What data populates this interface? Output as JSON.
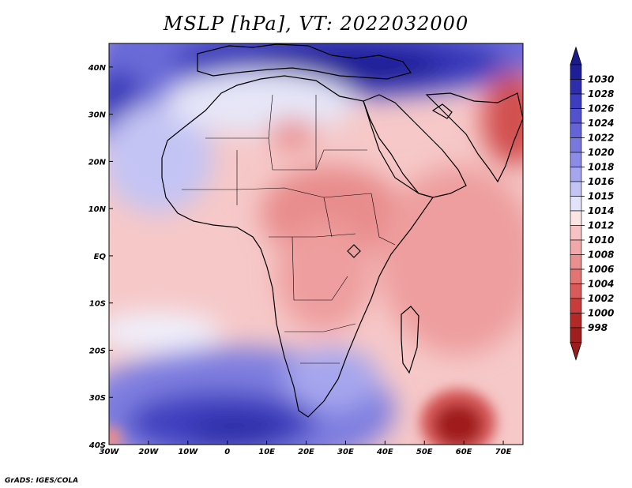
{
  "title": "MSLP [hPa], VT: 2022032000",
  "credit": "GrADS: IGES/COLA",
  "map": {
    "lon_range": [
      -30,
      75
    ],
    "lat_range": [
      -40,
      45
    ],
    "lon_ticks": [
      {
        "value": -30,
        "label": "30W"
      },
      {
        "value": -20,
        "label": "20W"
      },
      {
        "value": -10,
        "label": "10W"
      },
      {
        "value": 0,
        "label": "0"
      },
      {
        "value": 10,
        "label": "10E"
      },
      {
        "value": 20,
        "label": "20E"
      },
      {
        "value": 30,
        "label": "30E"
      },
      {
        "value": 40,
        "label": "40E"
      },
      {
        "value": 50,
        "label": "50E"
      },
      {
        "value": 60,
        "label": "60E"
      },
      {
        "value": 70,
        "label": "70E"
      }
    ],
    "lat_ticks": [
      {
        "value": 40,
        "label": "40N"
      },
      {
        "value": 30,
        "label": "30N"
      },
      {
        "value": 20,
        "label": "20N"
      },
      {
        "value": 10,
        "label": "10N"
      },
      {
        "value": 0,
        "label": "EQ"
      },
      {
        "value": -10,
        "label": "10S"
      },
      {
        "value": -20,
        "label": "20S"
      },
      {
        "value": -30,
        "label": "30S"
      },
      {
        "value": -40,
        "label": "40S"
      }
    ]
  },
  "colorbar": {
    "levels": [
      "1030",
      "1028",
      "1026",
      "1024",
      "1022",
      "1020",
      "1018",
      "1016",
      "1015",
      "1014",
      "1012",
      "1010",
      "1008",
      "1006",
      "1004",
      "1002",
      "1000",
      "998"
    ],
    "colors": [
      "#1e1e96",
      "#2e2ead",
      "#3d3dc0",
      "#5252cc",
      "#6464d6",
      "#7878de",
      "#8c8ce6",
      "#a6a6ee",
      "#c4c4f4",
      "#e2e2fa",
      "#fbe4e4",
      "#f6c2c2",
      "#f0a8a8",
      "#ea8f8f",
      "#e27474",
      "#d85a5a",
      "#c83c3c",
      "#b42828",
      "#a01e1e"
    ],
    "top_arrow_color": "#1a1a8a",
    "bottom_arrow_color": "#9a1c1c"
  }
}
